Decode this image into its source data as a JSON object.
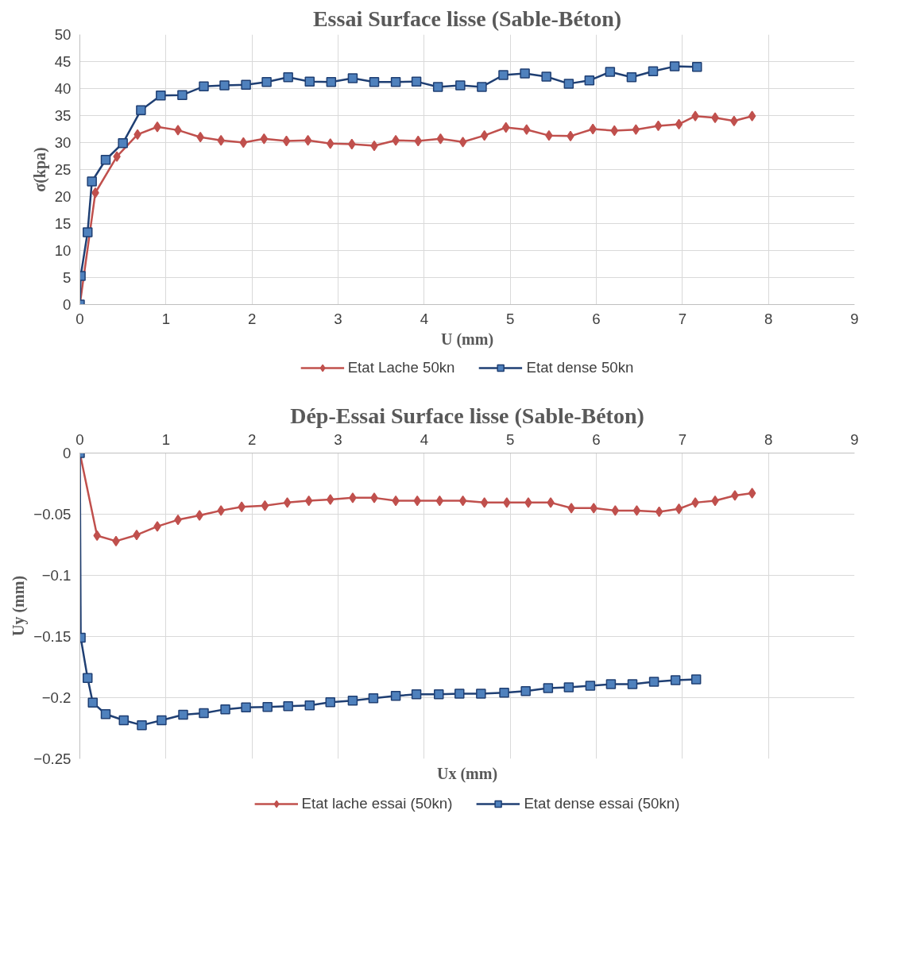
{
  "chart_data": [
    {
      "type": "line",
      "title": "Essai Surface lisse (Sable-Béton)",
      "xlabel": "U (mm)",
      "ylabel": "σ(kpa)",
      "xlim": [
        0,
        9
      ],
      "ylim": [
        0,
        50
      ],
      "xticks": [
        0,
        1,
        2,
        3,
        4,
        5,
        6,
        7,
        8,
        9
      ],
      "yticks": [
        0,
        5,
        10,
        15,
        20,
        25,
        30,
        35,
        40,
        45,
        50
      ],
      "grid": true,
      "legend": "bottom",
      "series": [
        {
          "name": "Etat Lache 50kn",
          "color": "#c0504d",
          "marker": "diamond",
          "x": [
            0,
            0.18,
            0.43,
            0.67,
            0.9,
            1.14,
            1.4,
            1.64,
            1.9,
            2.14,
            2.4,
            2.65,
            2.91,
            3.16,
            3.42,
            3.67,
            3.93,
            4.19,
            4.45,
            4.7,
            4.95,
            5.19,
            5.45,
            5.7,
            5.96,
            6.21,
            6.46,
            6.72,
            6.96,
            7.15,
            7.38,
            7.6,
            7.81
          ],
          "values": [
            0,
            20.7,
            27.4,
            31.5,
            32.9,
            32.3,
            31.0,
            30.4,
            30.0,
            30.7,
            30.3,
            30.4,
            29.8,
            29.7,
            29.4,
            30.4,
            30.3,
            30.7,
            30.1,
            31.3,
            32.8,
            32.4,
            31.3,
            31.2,
            32.5,
            32.2,
            32.4,
            33.1,
            33.4,
            34.9,
            34.6,
            34.0,
            34.9
          ]
        },
        {
          "name": "Etat dense 50kn",
          "color": "#1f3f73",
          "marker": "square",
          "x": [
            0,
            0.01,
            0.09,
            0.14,
            0.3,
            0.5,
            0.71,
            0.94,
            1.19,
            1.44,
            1.68,
            1.93,
            2.17,
            2.42,
            2.67,
            2.92,
            3.17,
            3.42,
            3.67,
            3.91,
            4.16,
            4.42,
            4.67,
            4.92,
            5.17,
            5.42,
            5.68,
            5.92,
            6.16,
            6.41,
            6.66,
            6.91,
            7.17
          ],
          "values": [
            0,
            5.3,
            13.4,
            22.8,
            26.8,
            29.9,
            36.0,
            38.7,
            38.8,
            40.4,
            40.6,
            40.7,
            41.2,
            42.1,
            41.3,
            41.2,
            41.9,
            41.2,
            41.2,
            41.3,
            40.3,
            40.6,
            40.3,
            42.5,
            42.8,
            42.2,
            40.9,
            41.5,
            43.1,
            42.1,
            43.2,
            44.1,
            44.0
          ]
        }
      ]
    },
    {
      "type": "line",
      "title": "Dép-Essai Surface lisse (Sable-Béton)",
      "xlabel": "Ux (mm)",
      "ylabel": "Uy (mm)",
      "xlim": [
        0,
        9
      ],
      "ylim": [
        -0.25,
        0
      ],
      "xticks": [
        0,
        1,
        2,
        3,
        4,
        5,
        6,
        7,
        8,
        9
      ],
      "yticks": [
        -0.25,
        -0.2,
        -0.15,
        -0.1,
        -0.05,
        0
      ],
      "grid": true,
      "legend": "bottom",
      "series": [
        {
          "name": "Etat lache essai (50kn)",
          "color": "#c0504d",
          "marker": "diamond",
          "x": [
            0,
            0.2,
            0.42,
            0.66,
            0.9,
            1.14,
            1.39,
            1.64,
            1.88,
            2.15,
            2.41,
            2.66,
            2.91,
            3.17,
            3.42,
            3.67,
            3.92,
            4.18,
            4.45,
            4.7,
            4.96,
            5.21,
            5.47,
            5.71,
            5.97,
            6.22,
            6.47,
            6.73,
            6.96,
            7.15,
            7.38,
            7.61,
            7.81
          ],
          "values": [
            0,
            -0.0675,
            -0.072,
            -0.067,
            -0.06,
            -0.0546,
            -0.051,
            -0.047,
            -0.044,
            -0.043,
            -0.0405,
            -0.039,
            -0.038,
            -0.0366,
            -0.0366,
            -0.039,
            -0.039,
            -0.039,
            -0.039,
            -0.0405,
            -0.0405,
            -0.0405,
            -0.0405,
            -0.045,
            -0.045,
            -0.047,
            -0.047,
            -0.048,
            -0.0456,
            -0.0405,
            -0.039,
            -0.0347,
            -0.0328
          ]
        },
        {
          "name": "Etat dense essai (50kn)",
          "color": "#1f3f73",
          "marker": "square",
          "x": [
            0,
            0.01,
            0.09,
            0.15,
            0.3,
            0.51,
            0.72,
            0.95,
            1.2,
            1.44,
            1.69,
            1.93,
            2.18,
            2.42,
            2.67,
            2.91,
            3.17,
            3.41,
            3.67,
            3.91,
            4.17,
            4.41,
            4.66,
            4.93,
            5.18,
            5.44,
            5.68,
            5.93,
            6.17,
            6.42,
            6.67,
            6.92,
            7.16
          ],
          "values": [
            0,
            -0.151,
            -0.184,
            -0.204,
            -0.2135,
            -0.2185,
            -0.2225,
            -0.2185,
            -0.214,
            -0.2127,
            -0.2095,
            -0.208,
            -0.2076,
            -0.207,
            -0.2063,
            -0.2037,
            -0.2024,
            -0.2005,
            -0.1986,
            -0.1973,
            -0.1973,
            -0.1967,
            -0.1967,
            -0.196,
            -0.1947,
            -0.1922,
            -0.1915,
            -0.1902,
            -0.189,
            -0.189,
            -0.187,
            -0.1857,
            -0.185
          ]
        }
      ]
    }
  ]
}
